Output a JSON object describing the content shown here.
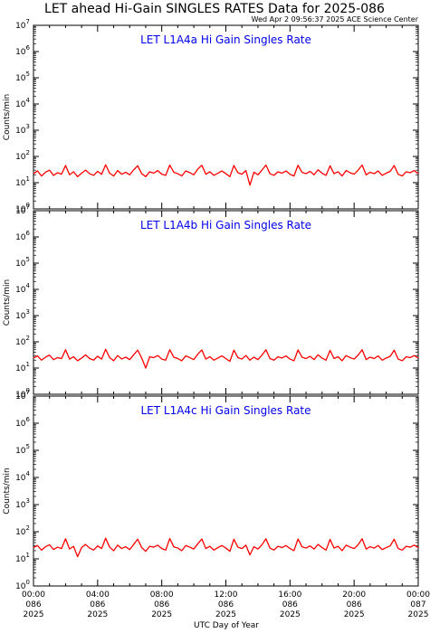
{
  "header": {
    "title": "LET ahead Hi-Gain SINGLES RATES Data for 2025-086",
    "timestamp": "Wed Apr  2 09:56:37 2025 ACE Science Center"
  },
  "colors": {
    "series": "#ff0000",
    "panel_title": "#0000ee",
    "axes": "#000000",
    "background": "#ffffff"
  },
  "chart_data": [
    {
      "type": "line",
      "title": "LET L1A4a Hi Gain Singles Rate",
      "ylabel": "Counts/min",
      "xlabel": "UTC Day of Year",
      "y_scale": "log",
      "ylim": [
        1,
        10000000
      ],
      "y_ticks": [
        "10^0",
        "10^1",
        "10^2",
        "10^3",
        "10^4",
        "10^5",
        "10^6",
        "10^7"
      ],
      "xlim": [
        "2025-086 00:00",
        "2025-087 00:00"
      ],
      "series": [
        {
          "baseline": 22,
          "hours": [
            0,
            0.25,
            0.5,
            0.75,
            1,
            1.25,
            1.5,
            1.75,
            2,
            2.25,
            2.5,
            2.75,
            3,
            3.25,
            3.5,
            3.75,
            4,
            4.25,
            4.5,
            4.75,
            5,
            5.25,
            5.5,
            5.75,
            6,
            6.25,
            6.5,
            6.75,
            7,
            7.25,
            7.5,
            7.75,
            8,
            8.25,
            8.5,
            8.75,
            9,
            9.25,
            9.5,
            9.75,
            10,
            10.25,
            10.5,
            10.75,
            11,
            11.25,
            11.5,
            11.75,
            12,
            12.25,
            12.5,
            12.75,
            13,
            13.25,
            13.5,
            13.75,
            14,
            14.25,
            14.5,
            14.75,
            15,
            15.25,
            15.5,
            15.75,
            16,
            16.25,
            16.5,
            16.75,
            17,
            17.25,
            17.5,
            17.75,
            18,
            18.25,
            18.5,
            18.75,
            19,
            19.25,
            19.5,
            19.75,
            20,
            20.25,
            20.5,
            20.75,
            21,
            21.25,
            21.5,
            21.75,
            22,
            22.25,
            22.5,
            22.75,
            23,
            23.25,
            23.5,
            23.75,
            24
          ],
          "values": [
            22,
            28,
            18,
            25,
            30,
            19,
            24,
            21,
            45,
            20,
            26,
            17,
            23,
            30,
            22,
            19,
            27,
            21,
            48,
            23,
            18,
            29,
            21,
            25,
            20,
            31,
            44,
            22,
            17,
            26,
            23,
            29,
            21,
            19,
            47,
            25,
            22,
            18,
            28,
            24,
            20,
            33,
            46,
            21,
            26,
            19,
            23,
            28,
            22,
            17,
            45,
            24,
            21,
            29,
            8,
            25,
            20,
            30,
            47,
            22,
            19,
            26,
            23,
            28,
            21,
            18,
            46,
            25,
            22,
            27,
            20,
            31,
            23,
            19,
            44,
            22,
            26,
            18,
            29,
            24,
            21,
            30,
            47,
            20,
            25,
            22,
            28,
            19,
            23,
            27,
            45,
            21,
            18,
            26,
            24,
            29,
            22
          ]
        }
      ]
    },
    {
      "type": "line",
      "title": "LET L1A4b Hi Gain Singles Rate",
      "ylabel": "Counts/min",
      "xlabel": "UTC Day of Year",
      "y_scale": "log",
      "ylim": [
        1,
        10000000
      ],
      "y_ticks": [
        "10^0",
        "10^1",
        "10^2",
        "10^3",
        "10^4",
        "10^5",
        "10^6",
        "10^7"
      ],
      "xlim": [
        "2025-086 00:00",
        "2025-087 00:00"
      ],
      "series": [
        {
          "baseline": 24,
          "hours": [
            0,
            0.25,
            0.5,
            0.75,
            1,
            1.25,
            1.5,
            1.75,
            2,
            2.25,
            2.5,
            2.75,
            3,
            3.25,
            3.5,
            3.75,
            4,
            4.25,
            4.5,
            4.75,
            5,
            5.25,
            5.5,
            5.75,
            6,
            6.25,
            6.5,
            6.75,
            7,
            7.25,
            7.5,
            7.75,
            8,
            8.25,
            8.5,
            8.75,
            9,
            9.25,
            9.5,
            9.75,
            10,
            10.25,
            10.5,
            10.75,
            11,
            11.25,
            11.5,
            11.75,
            12,
            12.25,
            12.5,
            12.75,
            13,
            13.25,
            13.5,
            13.75,
            14,
            14.25,
            14.5,
            14.75,
            15,
            15.25,
            15.5,
            15.75,
            16,
            16.25,
            16.5,
            16.75,
            17,
            17.25,
            17.5,
            17.75,
            18,
            18.25,
            18.5,
            18.75,
            19,
            19.25,
            19.5,
            19.75,
            20,
            20.25,
            20.5,
            20.75,
            21,
            21.25,
            21.5,
            21.75,
            22,
            22.25,
            22.5,
            22.75,
            23,
            23.25,
            23.5,
            23.75,
            24
          ],
          "values": [
            24,
            29,
            20,
            26,
            31,
            21,
            25,
            23,
            50,
            22,
            27,
            19,
            24,
            32,
            23,
            20,
            28,
            22,
            52,
            25,
            19,
            30,
            22,
            26,
            21,
            32,
            48,
            24,
            10,
            27,
            25,
            30,
            22,
            20,
            50,
            26,
            23,
            19,
            29,
            25,
            21,
            34,
            49,
            22,
            27,
            20,
            24,
            29,
            23,
            18,
            48,
            25,
            22,
            30,
            20,
            26,
            21,
            31,
            50,
            23,
            20,
            27,
            24,
            29,
            22,
            19,
            49,
            26,
            23,
            28,
            21,
            32,
            24,
            20,
            47,
            23,
            27,
            19,
            30,
            25,
            22,
            31,
            50,
            21,
            26,
            23,
            29,
            20,
            24,
            28,
            48,
            22,
            19,
            27,
            25,
            30,
            24
          ]
        }
      ]
    },
    {
      "type": "line",
      "title": "LET L1A4c Hi Gain Singles Rate",
      "ylabel": "Counts/min",
      "xlabel": "UTC Day of Year",
      "y_scale": "log",
      "ylim": [
        1,
        10000000
      ],
      "y_ticks": [
        "10^0",
        "10^1",
        "10^2",
        "10^3",
        "10^4",
        "10^5",
        "10^6",
        "10^7"
      ],
      "xlim": [
        "2025-086 00:00",
        "2025-087 00:00"
      ],
      "series": [
        {
          "baseline": 26,
          "hours": [
            0,
            0.25,
            0.5,
            0.75,
            1,
            1.25,
            1.5,
            1.75,
            2,
            2.25,
            2.5,
            2.75,
            3,
            3.25,
            3.5,
            3.75,
            4,
            4.25,
            4.5,
            4.75,
            5,
            5.25,
            5.5,
            5.75,
            6,
            6.25,
            6.5,
            6.75,
            7,
            7.25,
            7.5,
            7.75,
            8,
            8.25,
            8.5,
            8.75,
            9,
            9.25,
            9.5,
            9.75,
            10,
            10.25,
            10.5,
            10.75,
            11,
            11.25,
            11.5,
            11.75,
            12,
            12.25,
            12.5,
            12.75,
            13,
            13.25,
            13.5,
            13.75,
            14,
            14.25,
            14.5,
            14.75,
            15,
            15.25,
            15.5,
            15.75,
            16,
            16.25,
            16.5,
            16.75,
            17,
            17.25,
            17.5,
            17.75,
            18,
            18.25,
            18.5,
            18.75,
            19,
            19.25,
            19.5,
            19.75,
            20,
            20.25,
            20.5,
            20.75,
            21,
            21.25,
            21.5,
            21.75,
            22,
            22.25,
            22.5,
            22.75,
            23,
            23.25,
            23.5,
            23.75,
            24
          ],
          "values": [
            26,
            31,
            21,
            28,
            33,
            22,
            27,
            24,
            55,
            23,
            29,
            12,
            26,
            34,
            25,
            21,
            30,
            24,
            58,
            27,
            20,
            32,
            24,
            28,
            22,
            34,
            53,
            26,
            19,
            29,
            27,
            32,
            24,
            21,
            56,
            28,
            25,
            20,
            31,
            27,
            23,
            36,
            54,
            24,
            29,
            21,
            26,
            31,
            25,
            19,
            53,
            27,
            24,
            32,
            14,
            28,
            23,
            33,
            55,
            25,
            21,
            29,
            26,
            31,
            24,
            20,
            54,
            28,
            25,
            30,
            23,
            34,
            26,
            21,
            52,
            25,
            29,
            20,
            32,
            27,
            24,
            33,
            55,
            23,
            28,
            25,
            31,
            22,
            26,
            30,
            53,
            24,
            21,
            29,
            27,
            32,
            26
          ]
        }
      ]
    }
  ],
  "x_axis": {
    "ticks": [
      {
        "time": "00:00",
        "day": "086",
        "year": "2025"
      },
      {
        "time": "04:00",
        "day": "086",
        "year": "2025"
      },
      {
        "time": "08:00",
        "day": "086",
        "year": "2025"
      },
      {
        "time": "12:00",
        "day": "086",
        "year": "2025"
      },
      {
        "time": "16:00",
        "day": "086",
        "year": "2025"
      },
      {
        "time": "20:00",
        "day": "086",
        "year": "2025"
      },
      {
        "time": "00:00",
        "day": "087",
        "year": "2025"
      }
    ],
    "label": "UTC Day of Year"
  }
}
